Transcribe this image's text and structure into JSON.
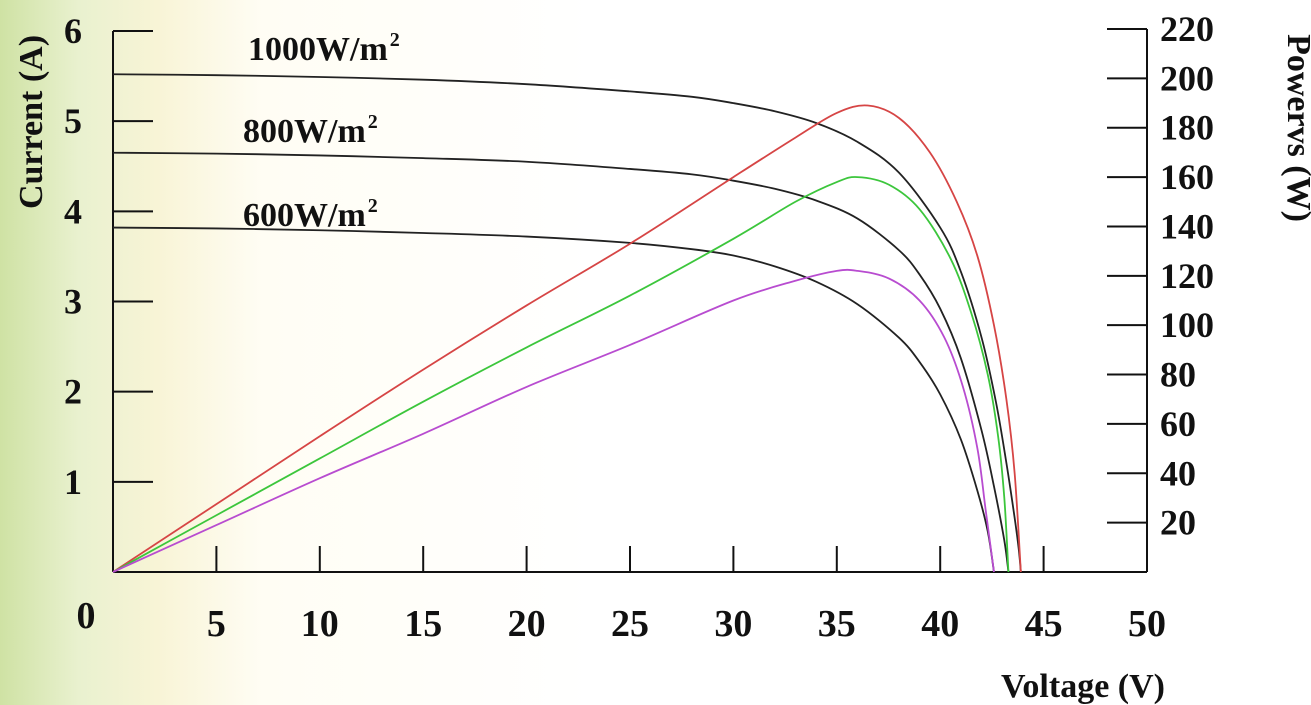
{
  "chart_data": {
    "type": "line",
    "xlabel": "Voltage (V)",
    "ylabel": "Current (A)",
    "y2label": "Powervs (W)",
    "xlim": [
      0,
      50
    ],
    "ylim": [
      0,
      6
    ],
    "y2lim": [
      0,
      220
    ],
    "xticks": [
      "0",
      "5",
      "10",
      "15",
      "20",
      "25",
      "30",
      "35",
      "40",
      "45",
      "50"
    ],
    "yticks": [
      "1",
      "2",
      "3",
      "4",
      "5",
      "6"
    ],
    "y2ticks": [
      "20",
      "40",
      "60",
      "80",
      "100",
      "120",
      "140",
      "160",
      "180",
      "200",
      "220"
    ],
    "grid": false,
    "curve_labels": [
      {
        "text": "1000W/m",
        "sup": "2"
      },
      {
        "text": "800W/m",
        "sup": "2"
      },
      {
        "text": "600W/m",
        "sup": "2"
      }
    ],
    "series": [
      {
        "axis": "left",
        "color": "#222222",
        "x": [
          0,
          5,
          10,
          15,
          20,
          25,
          28,
          30,
          32,
          34,
          36,
          38,
          40,
          41,
          42,
          42.7,
          43.2,
          43.6,
          43.8,
          43.9
        ],
        "y": [
          5.52,
          5.51,
          5.49,
          5.46,
          5.41,
          5.33,
          5.27,
          5.2,
          5.11,
          4.98,
          4.77,
          4.43,
          3.82,
          3.33,
          2.6,
          1.88,
          1.21,
          0.6,
          0.25,
          0
        ]
      },
      {
        "axis": "left",
        "color": "#222222",
        "x": [
          0,
          5,
          10,
          15,
          20,
          25,
          28,
          30,
          32,
          34,
          36,
          38,
          39,
          40,
          41,
          42,
          42.6,
          43.1,
          43.3
        ],
        "y": [
          4.65,
          4.64,
          4.62,
          4.59,
          4.55,
          4.47,
          4.41,
          4.34,
          4.25,
          4.12,
          3.92,
          3.57,
          3.3,
          2.92,
          2.37,
          1.57,
          0.95,
          0.35,
          0
        ]
      },
      {
        "axis": "left",
        "color": "#222222",
        "x": [
          0,
          5,
          10,
          15,
          20,
          25,
          28,
          30,
          32,
          34,
          36,
          38,
          39,
          40,
          41,
          41.8,
          42.3,
          42.6
        ],
        "y": [
          3.82,
          3.81,
          3.79,
          3.76,
          3.72,
          3.65,
          3.58,
          3.51,
          3.39,
          3.22,
          2.97,
          2.6,
          2.33,
          1.97,
          1.47,
          0.9,
          0.45,
          0
        ]
      },
      {
        "axis": "right",
        "color": "#d64545",
        "x": [
          0,
          5,
          10,
          15,
          20,
          25,
          30,
          33,
          35,
          36.5,
          38,
          39.5,
          40.8,
          41.8,
          42.6,
          43.2,
          43.6,
          43.9
        ],
        "y": [
          0,
          27.5,
          55,
          82,
          108,
          133,
          160,
          176,
          186,
          189,
          184,
          170,
          150,
          128,
          100,
          70,
          40,
          0
        ]
      },
      {
        "axis": "right",
        "color": "#3cc63c",
        "x": [
          0,
          5,
          10,
          15,
          20,
          25,
          30,
          33,
          35,
          36,
          37.5,
          39,
          40.5,
          41.5,
          42.3,
          42.8,
          43.1,
          43.3
        ],
        "y": [
          0,
          23,
          46,
          69,
          91,
          112,
          135,
          150,
          158,
          160,
          157,
          147,
          127,
          105,
          80,
          55,
          30,
          0
        ]
      },
      {
        "axis": "right",
        "color": "#b84cd0",
        "x": [
          0,
          5,
          10,
          15,
          20,
          25,
          30,
          33,
          35,
          36,
          37.5,
          39,
          40.2,
          41.1,
          41.8,
          42.2,
          42.6
        ],
        "y": [
          0,
          19,
          38,
          56,
          75,
          92,
          110,
          118,
          122,
          122,
          119,
          110,
          95,
          75,
          50,
          25,
          0
        ]
      }
    ]
  }
}
